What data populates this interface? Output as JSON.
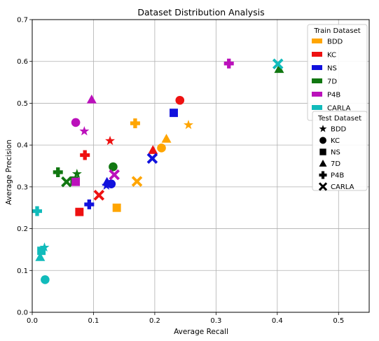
{
  "chart_data": {
    "type": "scatter",
    "title": "Dataset Distribution Analysis",
    "xlabel": "Average Recall",
    "ylabel": "Average Precision",
    "xlim": [
      0.0,
      0.55
    ],
    "ylim": [
      0.0,
      0.7
    ],
    "xticks": [
      "0.0",
      "0.1",
      "0.2",
      "0.3",
      "0.4",
      "0.5"
    ],
    "yticks": [
      "0.0",
      "0.1",
      "0.2",
      "0.3",
      "0.4",
      "0.5",
      "0.6",
      "0.7"
    ],
    "grid": true,
    "train_legend": {
      "title": "Train Dataset",
      "placement": "top-right",
      "entries": [
        {
          "name": "BDD",
          "color": "#FFA500"
        },
        {
          "name": "KC",
          "color": "#EE1111"
        },
        {
          "name": "NS",
          "color": "#1111DD"
        },
        {
          "name": "7D",
          "color": "#117711"
        },
        {
          "name": "P4B",
          "color": "#BB11BB"
        },
        {
          "name": "CARLA",
          "color": "#11BBBB"
        }
      ]
    },
    "test_legend": {
      "title": "Test Dataset",
      "placement": "right",
      "entries": [
        {
          "name": "BDD",
          "marker": "star"
        },
        {
          "name": "KC",
          "marker": "circle"
        },
        {
          "name": "NS",
          "marker": "square"
        },
        {
          "name": "7D",
          "marker": "triangle"
        },
        {
          "name": "P4B",
          "marker": "plus"
        },
        {
          "name": "CARLA",
          "marker": "x"
        }
      ]
    },
    "points": [
      {
        "train": "BDD",
        "test": "BDD",
        "x": 0.255,
        "y": 0.448
      },
      {
        "train": "BDD",
        "test": "KC",
        "x": 0.211,
        "y": 0.393
      },
      {
        "train": "BDD",
        "test": "NS",
        "x": 0.138,
        "y": 0.25
      },
      {
        "train": "BDD",
        "test": "7D",
        "x": 0.219,
        "y": 0.415
      },
      {
        "train": "BDD",
        "test": "P4B",
        "x": 0.168,
        "y": 0.452
      },
      {
        "train": "BDD",
        "test": "CARLA",
        "x": 0.171,
        "y": 0.313
      },
      {
        "train": "KC",
        "test": "BDD",
        "x": 0.127,
        "y": 0.41
      },
      {
        "train": "KC",
        "test": "KC",
        "x": 0.241,
        "y": 0.507
      },
      {
        "train": "KC",
        "test": "NS",
        "x": 0.077,
        "y": 0.24
      },
      {
        "train": "KC",
        "test": "7D",
        "x": 0.197,
        "y": 0.388
      },
      {
        "train": "KC",
        "test": "P4B",
        "x": 0.086,
        "y": 0.376
      },
      {
        "train": "KC",
        "test": "CARLA",
        "x": 0.109,
        "y": 0.28
      },
      {
        "train": "NS",
        "test": "BDD",
        "x": 0.121,
        "y": 0.303
      },
      {
        "train": "NS",
        "test": "KC",
        "x": 0.129,
        "y": 0.307
      },
      {
        "train": "NS",
        "test": "NS",
        "x": 0.231,
        "y": 0.477
      },
      {
        "train": "NS",
        "test": "7D",
        "x": 0.122,
        "y": 0.312
      },
      {
        "train": "NS",
        "test": "P4B",
        "x": 0.093,
        "y": 0.258
      },
      {
        "train": "NS",
        "test": "CARLA",
        "x": 0.196,
        "y": 0.368
      },
      {
        "train": "7D",
        "test": "BDD",
        "x": 0.073,
        "y": 0.331
      },
      {
        "train": "7D",
        "test": "KC",
        "x": 0.132,
        "y": 0.348
      },
      {
        "train": "7D",
        "test": "NS",
        "x": 0.069,
        "y": 0.315
      },
      {
        "train": "7D",
        "test": "7D",
        "x": 0.403,
        "y": 0.582
      },
      {
        "train": "7D",
        "test": "P4B",
        "x": 0.042,
        "y": 0.335
      },
      {
        "train": "7D",
        "test": "CARLA",
        "x": 0.056,
        "y": 0.312
      },
      {
        "train": "P4B",
        "test": "BDD",
        "x": 0.085,
        "y": 0.433
      },
      {
        "train": "P4B",
        "test": "KC",
        "x": 0.071,
        "y": 0.454
      },
      {
        "train": "P4B",
        "test": "NS",
        "x": 0.071,
        "y": 0.312
      },
      {
        "train": "P4B",
        "test": "7D",
        "x": 0.097,
        "y": 0.509
      },
      {
        "train": "P4B",
        "test": "P4B",
        "x": 0.321,
        "y": 0.595
      },
      {
        "train": "P4B",
        "test": "CARLA",
        "x": 0.134,
        "y": 0.329
      },
      {
        "train": "CARLA",
        "test": "BDD",
        "x": 0.02,
        "y": 0.155
      },
      {
        "train": "CARLA",
        "test": "KC",
        "x": 0.021,
        "y": 0.078
      },
      {
        "train": "CARLA",
        "test": "NS",
        "x": 0.015,
        "y": 0.147
      },
      {
        "train": "CARLA",
        "test": "7D",
        "x": 0.013,
        "y": 0.132
      },
      {
        "train": "CARLA",
        "test": "P4B",
        "x": 0.008,
        "y": 0.242
      },
      {
        "train": "CARLA",
        "test": "CARLA",
        "x": 0.401,
        "y": 0.594
      }
    ]
  }
}
